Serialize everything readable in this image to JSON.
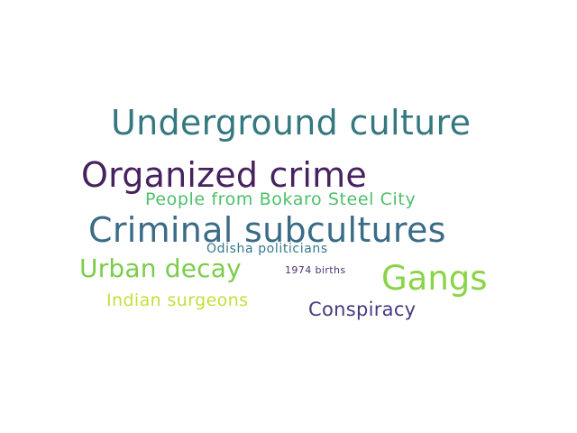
{
  "words": [
    {
      "id": "underground",
      "text": "Underground culture",
      "color": "#35787f"
    },
    {
      "id": "organized",
      "text": "Organized crime",
      "color": "#48225f"
    },
    {
      "id": "bokaro",
      "text": "People from Bokaro Steel City",
      "color": "#4dc06c"
    },
    {
      "id": "criminal",
      "text": "Criminal subcultures",
      "color": "#3a6c88"
    },
    {
      "id": "odisha",
      "text": "Odisha politicians",
      "color": "#34798c"
    },
    {
      "id": "urban",
      "text": "Urban decay",
      "color": "#7bcd4c"
    },
    {
      "id": "births",
      "text": "1974 births",
      "color": "#4a3477"
    },
    {
      "id": "gangs",
      "text": "Gangs",
      "color": "#8ad447"
    },
    {
      "id": "indian",
      "text": "Indian surgeons",
      "color": "#c3df3c"
    },
    {
      "id": "conspiracy",
      "text": "Conspiracy",
      "color": "#473a80"
    }
  ]
}
